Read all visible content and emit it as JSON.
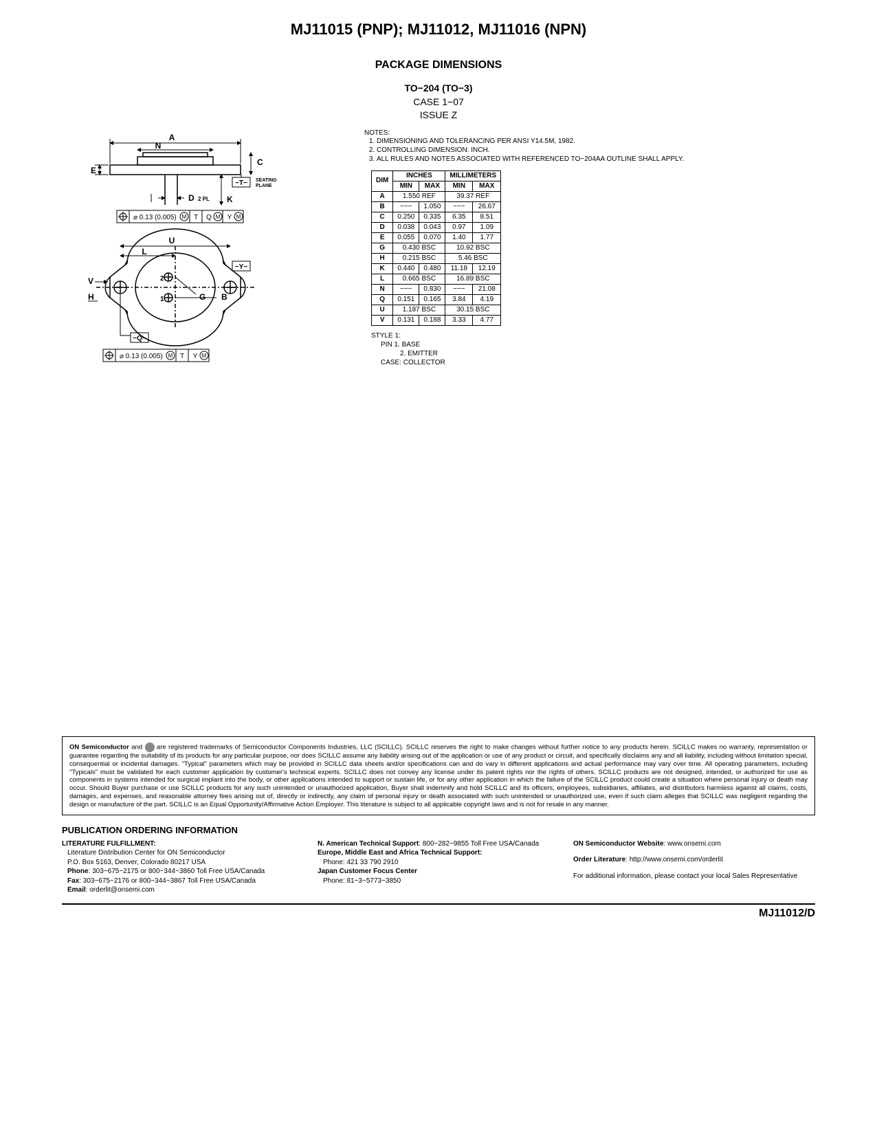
{
  "header": {
    "title": "MJ11015 (PNP); MJ11012, MJ11016 (NPN)",
    "section": "PACKAGE DIMENSIONS",
    "package_line1": "TO−204 (TO−3)",
    "package_line2": "CASE 1−07",
    "package_line3": "ISSUE Z"
  },
  "diagram": {
    "labels": [
      "A",
      "N",
      "C",
      "E",
      "−T−",
      "D",
      "K",
      "U",
      "L",
      "−Y−",
      "V",
      "G",
      "B",
      "H",
      "−Q−"
    ],
    "seating_plane": "SEATING\nPLANE",
    "d_suffix": "2 PL",
    "pin1": "1",
    "pin2": "2",
    "gdt1": {
      "tol": "0.13 (0.005)",
      "datums": [
        "T",
        "Q",
        "Y"
      ]
    },
    "gdt2": {
      "tol": "0.13 (0.005)",
      "datums": [
        "T",
        "Y"
      ]
    }
  },
  "notes": {
    "label": "NOTES:",
    "items": [
      "DIMENSIONING AND TOLERANCING PER ANSI Y14.5M, 1982.",
      "CONTROLLING DIMENSION: INCH.",
      "ALL RULES AND NOTES ASSOCIATED WITH REFERENCED TO−204AA OUTLINE SHALL APPLY."
    ]
  },
  "dim_table": {
    "header_inches": "INCHES",
    "header_mm": "MILLIMETERS",
    "header_dim": "DIM",
    "header_min": "MIN",
    "header_max": "MAX",
    "rows": [
      {
        "dim": "A",
        "in_span": "1.550 REF",
        "mm_span": "39.37 REF"
      },
      {
        "dim": "B",
        "in_min": "−−−",
        "in_max": "1.050",
        "mm_min": "−−−",
        "mm_max": "26.67"
      },
      {
        "dim": "C",
        "in_min": "0.250",
        "in_max": "0.335",
        "mm_min": "6.35",
        "mm_max": "8.51"
      },
      {
        "dim": "D",
        "in_min": "0.038",
        "in_max": "0.043",
        "mm_min": "0.97",
        "mm_max": "1.09"
      },
      {
        "dim": "E",
        "in_min": "0.055",
        "in_max": "0.070",
        "mm_min": "1.40",
        "mm_max": "1.77"
      },
      {
        "dim": "G",
        "in_span": "0.430 BSC",
        "mm_span": "10.92 BSC"
      },
      {
        "dim": "H",
        "in_span": "0.215 BSC",
        "mm_span": "5.46 BSC"
      },
      {
        "dim": "K",
        "in_min": "0.440",
        "in_max": "0.480",
        "mm_min": "11.18",
        "mm_max": "12.19"
      },
      {
        "dim": "L",
        "in_span": "0.665 BSC",
        "mm_span": "16.89 BSC"
      },
      {
        "dim": "N",
        "in_min": "−−−",
        "in_max": "0.830",
        "mm_min": "−−−",
        "mm_max": "21.08"
      },
      {
        "dim": "Q",
        "in_min": "0.151",
        "in_max": "0.165",
        "mm_min": "3.84",
        "mm_max": "4.19"
      },
      {
        "dim": "U",
        "in_span": "1.187 BSC",
        "mm_span": "30.15 BSC"
      },
      {
        "dim": "V",
        "in_min": "0.131",
        "in_max": "0.188",
        "mm_min": "3.33",
        "mm_max": "4.77"
      }
    ]
  },
  "style": {
    "title": "STYLE 1:",
    "pin1": "PIN 1.  BASE",
    "pin2": "2.  EMITTER",
    "case": "CASE:  COLLECTOR"
  },
  "disclaimer": {
    "lead_bold": "ON Semiconductor",
    "lead_text": " and ",
    "body": " are registered trademarks of Semiconductor Components Industries, LLC (SCILLC). SCILLC reserves the right to make changes without further notice to any products herein. SCILLC makes no warranty, representation or guarantee regarding the suitability of its products for any particular purpose, nor does SCILLC assume any liability arising out of the application or use of any product or circuit, and specifically disclaims any and all liability, including without limitation special, consequential or incidental damages. \"Typical\" parameters which may be provided in SCILLC data sheets and/or specifications can and do vary in different applications and actual performance may vary over time. All operating parameters, including \"Typicals\" must be validated for each customer application by customer's technical experts. SCILLC does not convey any license under its patent rights nor the rights of others. SCILLC products are not designed, intended, or authorized for use as components in systems intended for surgical implant into the body, or other applications intended to support or sustain life, or for any other application in which the failure of the SCILLC product could create a situation where personal injury or death may occur. Should Buyer purchase or use SCILLC products for any such unintended or unauthorized application, Buyer shall indemnify and hold SCILLC and its officers, employees, subsidiaries, affiliates, and distributors harmless against all claims, costs, damages, and expenses, and reasonable attorney fees arising out of, directly or indirectly, any claim of personal injury or death associated with such unintended or unauthorized use, even if such claim alleges that SCILLC was negligent regarding the design or manufacture of the part. SCILLC is an Equal Opportunity/Affirmative Action Employer. This literature is subject to all applicable copyright laws and is not for resale in any manner."
  },
  "pub": {
    "heading": "PUBLICATION ORDERING INFORMATION",
    "col1": {
      "title": "LITERATURE FULFILLMENT:",
      "l1": "Literature Distribution Center for ON Semiconductor",
      "l2": "P.O. Box 5163, Denver, Colorado 80217 USA",
      "l3_b": "Phone",
      "l3": ": 303−675−2175 or 800−344−3860 Toll Free USA/Canada",
      "l4_b": "Fax",
      "l4": ": 303−675−2176 or 800−344−3867 Toll Free USA/Canada",
      "l5_b": "Email",
      "l5": ": orderlit@onsemi.com"
    },
    "col2": {
      "l1_b": "N. American Technical Support",
      "l1": ": 800−282−9855 Toll Free USA/Canada",
      "l2_b": "Europe, Middle East and Africa Technical Support:",
      "l2": "Phone: 421 33 790 2910",
      "l3_b": "Japan Customer Focus Center",
      "l3": "Phone: 81−3−5773−3850"
    },
    "col3": {
      "l1_b": "ON Semiconductor Website",
      "l1": ": www.onsemi.com",
      "l2_b": "Order Literature",
      "l2": ": http://www.onsemi.com/orderlit",
      "l3": "For additional information, please contact your local Sales Representative"
    }
  },
  "footer": {
    "part": "MJ11012/D"
  }
}
